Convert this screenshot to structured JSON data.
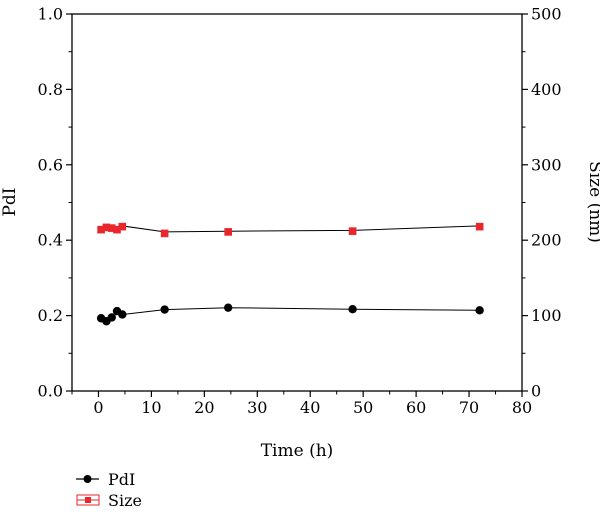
{
  "chart_data": {
    "type": "scatter",
    "xlabel": "Time (h)",
    "ylabel_left": "PdI",
    "ylabel_right": "Size (nm)",
    "xlim": [
      -5,
      80
    ],
    "ylim_left": [
      0.0,
      1.0
    ],
    "ylim_right": [
      0,
      500
    ],
    "x_ticks": [
      0,
      10,
      20,
      30,
      40,
      50,
      60,
      70,
      80
    ],
    "y_left_ticks": [
      "0.0",
      "0.2",
      "0.4",
      "0.6",
      "0.8",
      "1.0"
    ],
    "y_right_ticks": [
      "0",
      "100",
      "200",
      "300",
      "400",
      "500"
    ],
    "grid": false,
    "legend_placement": "bottom-left",
    "series": [
      {
        "name": "PdI",
        "axis": "left",
        "marker": "circle",
        "color": "#000000",
        "points": [
          [
            0.5,
            0.193
          ],
          [
            1.5,
            0.185
          ],
          [
            2.5,
            0.195
          ],
          [
            3.5,
            0.212
          ],
          [
            4.5,
            0.203
          ],
          [
            12.5,
            0.216
          ],
          [
            24.5,
            0.221
          ],
          [
            48,
            0.217
          ],
          [
            72,
            0.214
          ]
        ],
        "line": [
          [
            0.5,
            0.193
          ],
          [
            1.5,
            0.185
          ],
          [
            2.5,
            0.195
          ],
          [
            3.5,
            0.205
          ],
          [
            4.5,
            0.203
          ],
          [
            12.5,
            0.216
          ],
          [
            24.5,
            0.221
          ],
          [
            48,
            0.217
          ],
          [
            72,
            0.214
          ]
        ]
      },
      {
        "name": "Size",
        "axis": "right",
        "marker": "square",
        "color": "#e8262b",
        "points": [
          [
            0.5,
            214
          ],
          [
            1.5,
            217
          ],
          [
            2.5,
            216
          ],
          [
            3.5,
            214
          ],
          [
            4.5,
            218
          ],
          [
            12.5,
            209
          ],
          [
            24.5,
            211
          ],
          [
            48,
            212
          ],
          [
            72,
            218
          ]
        ],
        "line": [
          [
            0.5,
            214
          ],
          [
            1.5,
            217
          ],
          [
            2.5,
            216
          ],
          [
            3.5,
            216
          ],
          [
            4.5,
            219
          ],
          [
            12.5,
            211
          ],
          [
            24.5,
            212
          ],
          [
            48,
            213
          ],
          [
            72,
            219
          ]
        ]
      }
    ]
  }
}
